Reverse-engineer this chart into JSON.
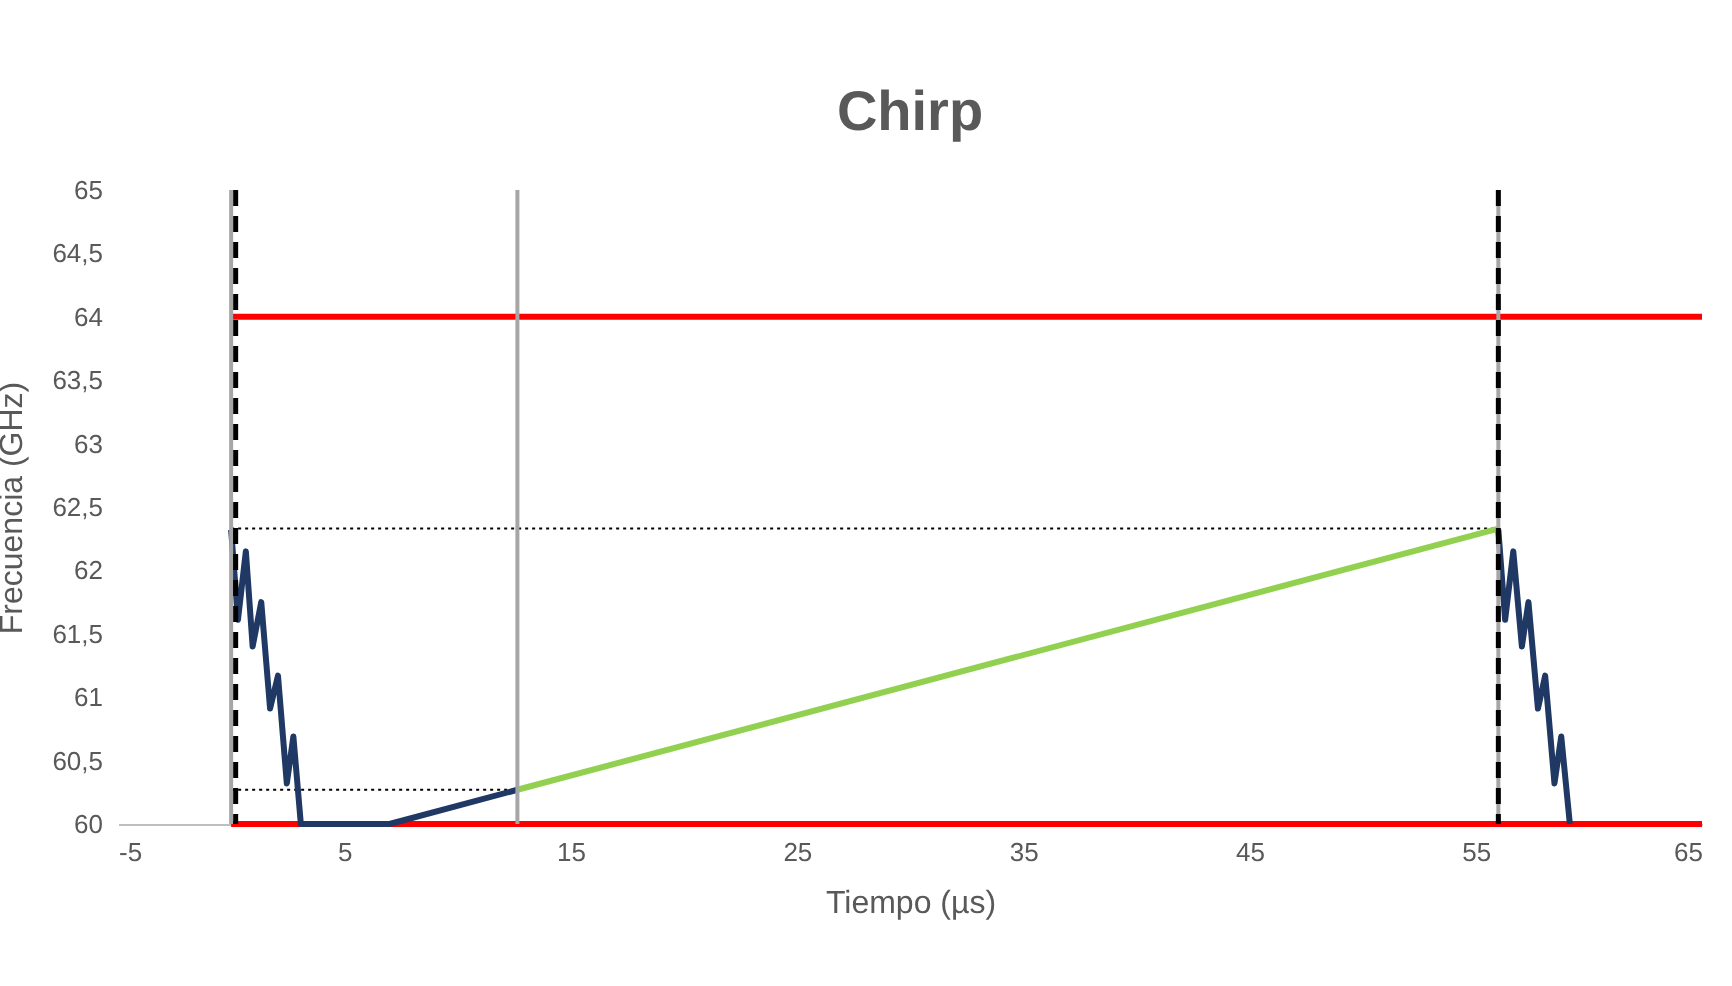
{
  "chart_data": {
    "type": "line",
    "title": "Chirp",
    "xlabel": "Tiempo (µs)",
    "ylabel": "Frecuencia (GHz)",
    "xlim": [
      -5,
      65
    ],
    "xticks": [
      -5,
      5,
      15,
      25,
      35,
      45,
      55,
      65
    ],
    "ylim": [
      60,
      65
    ],
    "yticks": [
      60,
      {
        "value": 60.5,
        "label": "60,5"
      },
      61,
      {
        "value": 61.5,
        "label": "61,5"
      },
      62,
      {
        "value": 62.5,
        "label": "62,5"
      },
      63,
      {
        "value": 63.5,
        "label": "63,5"
      },
      64,
      {
        "value": 64.5,
        "label": "64,5"
      },
      65
    ],
    "grid": false,
    "marker": "none",
    "series": [
      {
        "color": "#000000",
        "line_style": "dotted",
        "x": [
          0,
          56
        ],
        "values": [
          62.33,
          62.33
        ]
      },
      {
        "color": "#000000",
        "line_style": "dotted",
        "x": [
          0,
          12.65
        ],
        "values": [
          60.27,
          60.27
        ]
      },
      {
        "color": "#ff0000",
        "line_style": "solid",
        "x": [
          0,
          65
        ],
        "values": [
          64,
          64
        ]
      },
      {
        "color": "#ff0000",
        "line_style": "solid",
        "x": [
          0,
          65
        ],
        "values": [
          60,
          60
        ]
      },
      {
        "color": "#1f3864",
        "line_style": "solid",
        "x": [
          0,
          0.3,
          0.65,
          0.95,
          1.33,
          1.72,
          2.07,
          2.46,
          2.75,
          3.08,
          7.0,
          12.65,
          30,
          56.0,
          56.3,
          56.66,
          57.04,
          57.33,
          57.75,
          58.07,
          58.48,
          58.78,
          59.16
        ],
        "values": [
          62.32,
          61.61,
          62.15,
          61.4,
          61.75,
          60.91,
          61.17,
          60.32,
          60.69,
          60.0,
          60.0,
          60.27,
          null,
          62.32,
          61.61,
          62.15,
          61.4,
          61.75,
          60.91,
          61.17,
          60.32,
          60.69,
          60.0
        ]
      },
      {
        "color": "#92d050",
        "line_style": "solid",
        "x": [
          12.65,
          56
        ],
        "values": [
          60.27,
          62.33
        ]
      }
    ],
    "ref_lines": [
      {
        "axis": "x",
        "value": 0,
        "color": "#a6a6a6",
        "line_style": "solid"
      },
      {
        "axis": "x",
        "value": 12.65,
        "color": "#a6a6a6",
        "line_style": "solid"
      },
      {
        "axis": "x",
        "value": 56,
        "color": "#a6a6a6",
        "line_style": "solid"
      },
      {
        "axis": "x",
        "value": 0.2,
        "color": "#000000",
        "line_style": "dashed"
      },
      {
        "axis": "x",
        "value": 56,
        "color": "#000000",
        "line_style": "dashed"
      }
    ]
  }
}
